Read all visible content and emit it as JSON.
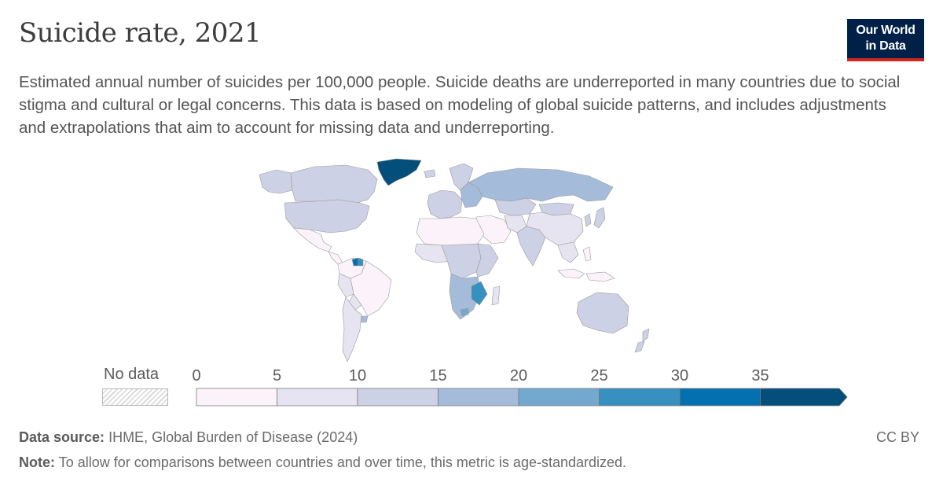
{
  "header": {
    "title": "Suicide rate, 2021",
    "subtitle": "Estimated annual number of suicides per 100,000 people. Suicide deaths are underreported in many countries due to social stigma and cultural or legal concerns. This data is based on modeling of global suicide patterns, and includes adjustments and extrapolations that aim to account for missing data and underreporting."
  },
  "logo": {
    "line1": "Our World",
    "line2": "in Data"
  },
  "legend": {
    "no_data_label": "No data",
    "ticks": [
      "0",
      "5",
      "10",
      "15",
      "20",
      "25",
      "30",
      "35"
    ],
    "bins": [
      {
        "from": 0,
        "to": 5,
        "color": "#fbf3f9"
      },
      {
        "from": 5,
        "to": 10,
        "color": "#e6e4f1"
      },
      {
        "from": 10,
        "to": 15,
        "color": "#cdd1e6"
      },
      {
        "from": 15,
        "to": 20,
        "color": "#a4bcda"
      },
      {
        "from": 20,
        "to": 25,
        "color": "#74a9cf"
      },
      {
        "from": 25,
        "to": 30,
        "color": "#3690c0"
      },
      {
        "from": 30,
        "to": 35,
        "color": "#0570b0"
      },
      {
        "from": 35,
        "to": null,
        "color": "#034e7b"
      }
    ],
    "no_data_pattern": "hatched-gray"
  },
  "footer": {
    "source_label": "Data source:",
    "source_text": "IHME, Global Burden of Disease (2024)",
    "note_label": "Note:",
    "note_text": "To allow for comparisons between countries and over time, this metric is age-standardized.",
    "license": "CC BY"
  },
  "map_regions": [
    {
      "name": "alaska",
      "color": "#cdd1e6"
    },
    {
      "name": "canada",
      "color": "#cdd1e6"
    },
    {
      "name": "usa",
      "color": "#cdd1e6"
    },
    {
      "name": "greenland",
      "color": "#034e7b"
    },
    {
      "name": "mexico",
      "color": "#fbf3f9"
    },
    {
      "name": "central-america",
      "color": "#fbf3f9"
    },
    {
      "name": "south-america-north",
      "color": "#fbf3f9"
    },
    {
      "name": "guyana",
      "color": "#0570b0"
    },
    {
      "name": "suriname",
      "color": "#3690c0"
    },
    {
      "name": "brazil",
      "color": "#fbf3f9"
    },
    {
      "name": "peru",
      "color": "#e6e4f1"
    },
    {
      "name": "bolivia",
      "color": "#e6e4f1"
    },
    {
      "name": "argentina-chile",
      "color": "#e6e4f1"
    },
    {
      "name": "uruguay",
      "color": "#a4bcda"
    },
    {
      "name": "iceland",
      "color": "#cdd1e6"
    },
    {
      "name": "scandinavia",
      "color": "#cdd1e6"
    },
    {
      "name": "western-europe",
      "color": "#cdd1e6"
    },
    {
      "name": "eastern-europe",
      "color": "#a4bcda"
    },
    {
      "name": "russia",
      "color": "#a4bcda"
    },
    {
      "name": "kazakhstan",
      "color": "#cdd1e6"
    },
    {
      "name": "north-africa",
      "color": "#fbf3f9"
    },
    {
      "name": "west-africa",
      "color": "#e6e4f1"
    },
    {
      "name": "central-africa",
      "color": "#cdd1e6"
    },
    {
      "name": "east-africa",
      "color": "#cdd1e6"
    },
    {
      "name": "southern-africa",
      "color": "#a4bcda"
    },
    {
      "name": "mozambique-zimbabwe",
      "color": "#3690c0"
    },
    {
      "name": "lesotho-sa",
      "color": "#74a9cf"
    },
    {
      "name": "madagascar",
      "color": "#e6e4f1"
    },
    {
      "name": "middle-east",
      "color": "#fbf3f9"
    },
    {
      "name": "central-asia",
      "color": "#e6e4f1"
    },
    {
      "name": "south-asia",
      "color": "#cdd1e6"
    },
    {
      "name": "china",
      "color": "#e6e4f1"
    },
    {
      "name": "mongolia",
      "color": "#cdd1e6"
    },
    {
      "name": "korea-japan",
      "color": "#cdd1e6"
    },
    {
      "name": "southeast-asia",
      "color": "#e6e4f1"
    },
    {
      "name": "indonesia-philippines",
      "color": "#fbf3f9"
    },
    {
      "name": "australia",
      "color": "#cdd1e6"
    },
    {
      "name": "new-zealand",
      "color": "#cdd1e6"
    }
  ]
}
